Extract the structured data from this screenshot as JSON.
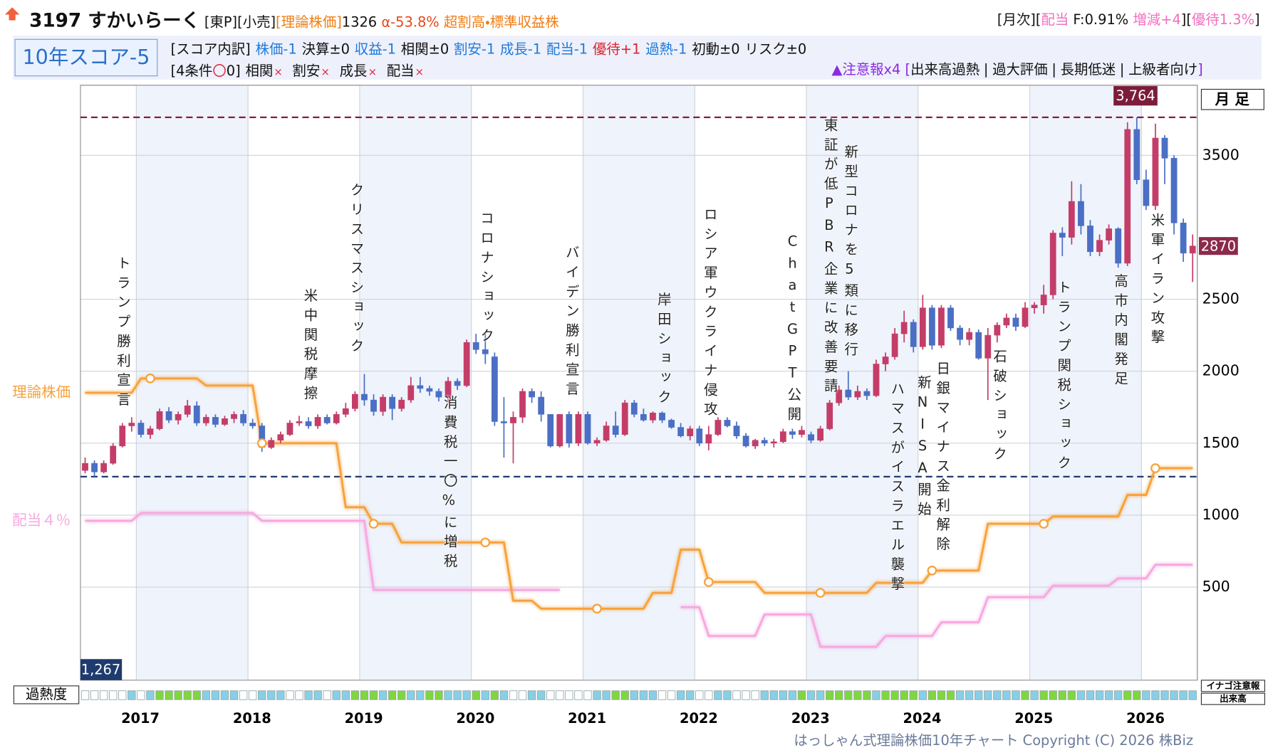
{
  "header": {
    "code_name": "3197 すかいらーく",
    "market": "[東P][小売]",
    "theory_label": "[理論株価]",
    "theory_value": "1326",
    "alpha": "α-53.8%",
    "rating": "超割高・標準収益株",
    "monthly": "[月次][",
    "dividend": "配当",
    "f_rate": "F:0.91%",
    "change": "増減+4",
    "sep": "][",
    "yutai": "優待1.3%",
    "close": "]"
  },
  "score": {
    "badge": "10年スコア-5",
    "breakdown_label": "[スコア内訳]",
    "items": [
      {
        "text": "株価-1",
        "color": "#1e7ad8"
      },
      {
        "text": "決算±0",
        "color": "#111111"
      },
      {
        "text": "収益-1",
        "color": "#1e7ad8"
      },
      {
        "text": "相関±0",
        "color": "#111111"
      },
      {
        "text": "割安-1",
        "color": "#1e7ad8"
      },
      {
        "text": "成長-1",
        "color": "#1e7ad8"
      },
      {
        "text": "配当-1",
        "color": "#1e7ad8"
      },
      {
        "text": "優待+1",
        "color": "#d9232d"
      },
      {
        "text": "過熱-1",
        "color": "#1e7ad8"
      },
      {
        "text": "初動±0",
        "color": "#111111"
      },
      {
        "text": "リスク±0",
        "color": "#111111"
      }
    ],
    "conditions_label": "[4条件",
    "conditions_mark": "〇",
    "conditions_count": "0]",
    "conditions": [
      {
        "text": "相関",
        "mark": "×"
      },
      {
        "text": "割安",
        "mark": "×"
      },
      {
        "text": "成長",
        "mark": "×"
      },
      {
        "text": "配当",
        "mark": "×"
      }
    ],
    "warning": "▲注意報x4",
    "warning_open": "[",
    "warning_sep": "|",
    "warning_close": "]",
    "warning_items": [
      "出来高過熱",
      "過大評価",
      "長期低迷",
      "上級者向け"
    ]
  },
  "chart_data": {
    "type": "candlestick",
    "period": "月 足",
    "overheat_label": "過熱度",
    "inago": "イナゴ注意報",
    "volume": "出来高",
    "copyright": "はっしゃん式理論株価10年チャート Copyright (C) 2026 株Biz",
    "xlim": [
      2016.5,
      2026.5
    ],
    "xticks": [
      2017,
      2018,
      2019,
      2020,
      2021,
      2022,
      2023,
      2024,
      2025,
      2026
    ],
    "ylim": [
      -147,
      3987
    ],
    "yticks": [
      500,
      1000,
      1500,
      2000,
      2500,
      3500
    ],
    "grid": true,
    "up_color": "#c43d68",
    "down_color": "#4a6fc4",
    "candles": {
      "open": [
        1310,
        1360,
        1300,
        1360,
        1480,
        1620,
        1640,
        1560,
        1600,
        1720,
        1660,
        1700,
        1760,
        1640,
        1680,
        1630,
        1670,
        1700,
        1640,
        1620,
        1470,
        1520,
        1560,
        1640,
        1650,
        1620,
        1680,
        1640,
        1700,
        1740,
        1840,
        1800,
        1720,
        1820,
        1740,
        1800,
        1900,
        1880,
        1860,
        1820,
        1930,
        1900,
        2200,
        2150,
        2100,
        1650,
        1640,
        1680,
        1860,
        1820,
        1700,
        1480,
        1700,
        1500,
        1700,
        1500,
        1520,
        1620,
        1560,
        1780,
        1700,
        1660,
        1710,
        1660,
        1610,
        1550,
        1600,
        1500,
        1560,
        1660,
        1620,
        1550,
        1480,
        1520,
        1500,
        1510,
        1580,
        1560,
        1560,
        1520,
        1600,
        1780,
        1870,
        1820,
        1860,
        1830,
        2050,
        2100,
        2260,
        2340,
        2170,
        2440,
        2180,
        2440,
        2300,
        2220,
        2270,
        2090,
        2250,
        2320,
        2370,
        2310,
        2440,
        2460,
        2530,
        2960,
        2930,
        3180,
        3010,
        2830,
        2910,
        2990,
        2750,
        3680,
        3330,
        3150,
        3620,
        3480,
        3030,
        2820
      ],
      "high": [
        1400,
        1380,
        1380,
        1500,
        1640,
        1680,
        1660,
        1620,
        1740,
        1750,
        1720,
        1800,
        1790,
        1700,
        1700,
        1690,
        1720,
        1730,
        1670,
        1640,
        1540,
        1580,
        1660,
        1690,
        1680,
        1700,
        1700,
        1720,
        1780,
        1860,
        1980,
        1840,
        1840,
        1840,
        1820,
        1960,
        1960,
        1900,
        1880,
        1960,
        1950,
        2220,
        2260,
        2260,
        2130,
        1820,
        1720,
        1880,
        1880,
        1860,
        1700,
        1700,
        1720,
        1720,
        1720,
        1540,
        1650,
        1720,
        1800,
        1800,
        1740,
        1720,
        1720,
        1670,
        1640,
        1620,
        1620,
        1620,
        1680,
        1680,
        1650,
        1570,
        1530,
        1540,
        1530,
        1600,
        1600,
        1620,
        1580,
        1620,
        1800,
        1900,
        2000,
        1900,
        1880,
        2080,
        2130,
        2300,
        2420,
        2360,
        2530,
        2460,
        2460,
        2460,
        2320,
        2300,
        2290,
        2300,
        2340,
        2400,
        2400,
        2480,
        2480,
        2600,
        2980,
        3000,
        3320,
        3300,
        3050,
        2950,
        3020,
        3000,
        3730,
        3764,
        3400,
        3720,
        3640,
        3500,
        3060,
        2950
      ],
      "low": [
        1290,
        1267,
        1290,
        1350,
        1470,
        1580,
        1540,
        1530,
        1590,
        1640,
        1630,
        1680,
        1620,
        1620,
        1610,
        1620,
        1640,
        1620,
        1600,
        1440,
        1460,
        1500,
        1550,
        1620,
        1600,
        1600,
        1630,
        1630,
        1680,
        1720,
        1760,
        1690,
        1690,
        1660,
        1720,
        1780,
        1850,
        1830,
        1790,
        1780,
        1870,
        1890,
        2120,
        2050,
        1620,
        1400,
        1360,
        1640,
        1780,
        1650,
        1470,
        1470,
        1470,
        1480,
        1490,
        1480,
        1510,
        1540,
        1550,
        1680,
        1650,
        1640,
        1640,
        1600,
        1540,
        1520,
        1480,
        1450,
        1550,
        1610,
        1530,
        1470,
        1460,
        1480,
        1470,
        1500,
        1530,
        1540,
        1500,
        1510,
        1590,
        1760,
        1800,
        1800,
        1800,
        1820,
        2000,
        2080,
        2200,
        2130,
        2150,
        2150,
        2160,
        2280,
        2180,
        2180,
        2080,
        1800,
        2200,
        2300,
        2280,
        2300,
        2400,
        2400,
        2500,
        2800,
        2880,
        2950,
        2800,
        2800,
        2880,
        2720,
        2730,
        3300,
        3120,
        3120,
        3300,
        2950,
        2760,
        2620
      ],
      "close": [
        1360,
        1300,
        1360,
        1480,
        1620,
        1640,
        1560,
        1600,
        1720,
        1660,
        1700,
        1760,
        1640,
        1680,
        1630,
        1670,
        1700,
        1640,
        1620,
        1470,
        1520,
        1560,
        1640,
        1650,
        1620,
        1680,
        1640,
        1700,
        1740,
        1840,
        1800,
        1720,
        1820,
        1740,
        1800,
        1900,
        1880,
        1860,
        1820,
        1930,
        1900,
        2200,
        2150,
        2120,
        1650,
        1640,
        1680,
        1860,
        1820,
        1700,
        1480,
        1700,
        1500,
        1700,
        1500,
        1520,
        1620,
        1560,
        1780,
        1700,
        1660,
        1710,
        1660,
        1610,
        1550,
        1600,
        1500,
        1560,
        1660,
        1620,
        1550,
        1480,
        1520,
        1500,
        1510,
        1580,
        1560,
        1590,
        1520,
        1600,
        1780,
        1870,
        1820,
        1860,
        1830,
        2050,
        2100,
        2260,
        2340,
        2170,
        2440,
        2180,
        2440,
        2300,
        2220,
        2270,
        2090,
        2250,
        2320,
        2370,
        2310,
        2440,
        2460,
        2530,
        2960,
        2930,
        3180,
        3010,
        2830,
        2910,
        2990,
        2750,
        3680,
        3330,
        3150,
        3620,
        3480,
        3030,
        2820,
        2870
      ]
    },
    "series": [
      {
        "name": "理論株価",
        "color": "#f7a23c",
        "values": [
          1850,
          1850,
          1850,
          1850,
          1850,
          1850,
          1950,
          1950,
          1950,
          1950,
          1950,
          1950,
          1950,
          1900,
          1900,
          1900,
          1900,
          1900,
          1900,
          1500,
          1500,
          1500,
          1500,
          1500,
          1500,
          1500,
          1500,
          1500,
          1055,
          1055,
          1055,
          940,
          940,
          940,
          810,
          810,
          810,
          810,
          810,
          810,
          810,
          810,
          810,
          810,
          810,
          810,
          405,
          405,
          405,
          350,
          350,
          350,
          350,
          350,
          350,
          350,
          350,
          350,
          350,
          350,
          350,
          460,
          460,
          460,
          760,
          760,
          760,
          535,
          535,
          535,
          535,
          535,
          535,
          460,
          460,
          460,
          460,
          460,
          460,
          460,
          460,
          460,
          460,
          460,
          460,
          530,
          530,
          530,
          530,
          530,
          530,
          615,
          615,
          615,
          615,
          615,
          615,
          940,
          940,
          940,
          940,
          940,
          940,
          940,
          990,
          990,
          990,
          990,
          990,
          990,
          990,
          990,
          1140,
          1140,
          1140,
          1326,
          1326,
          1326,
          1326,
          1326
        ]
      },
      {
        "name": "配当４％",
        "color": "#f7a8df",
        "values": [
          960,
          960,
          960,
          960,
          960,
          960,
          1015,
          1015,
          1015,
          1015,
          1015,
          1015,
          1015,
          1015,
          1015,
          1015,
          1015,
          1015,
          1015,
          960,
          960,
          960,
          960,
          960,
          960,
          960,
          960,
          960,
          960,
          960,
          960,
          480,
          480,
          480,
          480,
          480,
          480,
          480,
          480,
          480,
          480,
          480,
          480,
          480,
          480,
          480,
          480,
          480,
          480,
          480,
          480,
          480,
          null,
          null,
          null,
          null,
          null,
          null,
          null,
          null,
          null,
          null,
          null,
          null,
          360,
          360,
          360,
          160,
          160,
          160,
          160,
          160,
          160,
          310,
          310,
          310,
          310,
          310,
          310,
          85,
          85,
          85,
          85,
          85,
          85,
          85,
          160,
          160,
          160,
          160,
          160,
          160,
          255,
          255,
          255,
          255,
          255,
          430,
          430,
          430,
          430,
          430,
          430,
          430,
          510,
          510,
          510,
          510,
          510,
          510,
          510,
          560,
          560,
          560,
          560,
          655,
          655,
          655,
          655,
          655
        ]
      }
    ],
    "high_line": {
      "value": 3764,
      "label": "3,764"
    },
    "low_line": {
      "value": 1267,
      "label": "1,267"
    },
    "last_price": 2870,
    "events": [
      "トランプ勝利宣言",
      "米中関税摩擦",
      "クリスマスショック",
      "消費税一〇%に増税",
      "コロナショック",
      "バイデン勝利宣言",
      "岸田ショック",
      "ロシア軍ウクライナ侵攻",
      "ChatGPT公開",
      "東証が低PBR企業に改善要請",
      "新型コロナを5類に移行",
      "ハマスがイスラエル襲撃",
      "新NISA開始",
      "日銀マイナス金利解除",
      "石破ショック",
      "トランプ関税ショック",
      "高市内閣発足",
      "米軍イラン攻撃"
    ],
    "overheat_colors": [
      "#ffffff",
      "#88cfe6",
      "#7fd63f"
    ],
    "overheat": [
      0,
      0,
      0,
      0,
      0,
      1,
      0,
      1,
      2,
      2,
      2,
      2,
      2,
      1,
      1,
      1,
      1,
      0,
      0,
      1,
      1,
      1,
      0,
      0,
      1,
      1,
      0,
      1,
      1,
      2,
      2,
      2,
      1,
      2,
      2,
      1,
      1,
      2,
      2,
      1,
      1,
      1,
      2,
      1,
      2,
      1,
      0,
      0,
      1,
      1,
      0,
      0,
      0,
      0,
      0,
      1,
      1,
      2,
      2,
      1,
      1,
      1,
      0,
      0,
      1,
      1,
      0,
      0,
      1,
      1,
      0,
      0,
      0,
      1,
      1,
      1,
      1,
      2,
      1,
      1,
      2,
      2,
      2,
      2,
      2,
      1,
      2,
      2,
      2,
      2,
      1,
      2,
      2,
      2,
      1,
      1,
      1,
      1,
      1,
      1,
      1,
      2,
      1,
      2,
      2,
      2,
      2,
      1,
      1,
      1,
      1,
      1,
      2,
      2,
      1,
      1,
      1,
      1,
      1,
      1
    ]
  }
}
